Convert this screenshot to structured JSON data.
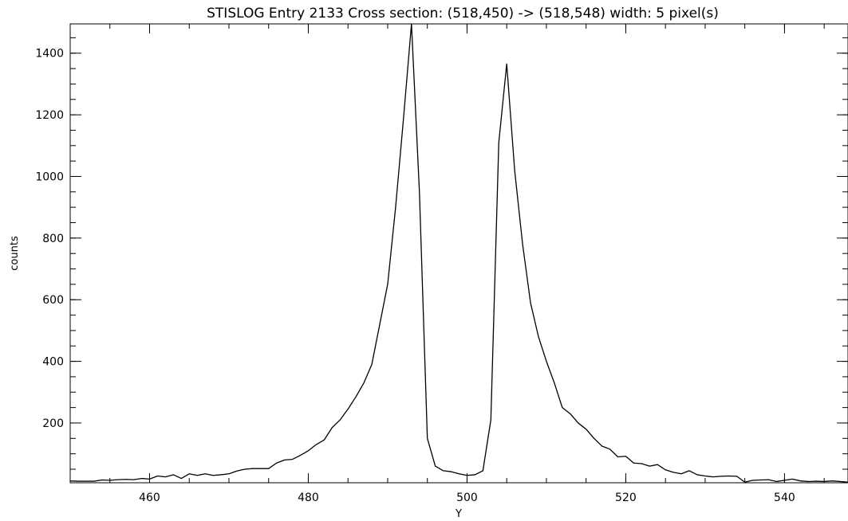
{
  "chart_data": {
    "type": "line",
    "title": "STISLOG Entry 2133 Cross section: (518,450) -> (518,548) width: 5 pixel(s)",
    "xlabel": "Y",
    "ylabel": "counts",
    "xlim": [
      450,
      548
    ],
    "ylim": [
      6,
      1495
    ],
    "x_ticks": [
      460,
      480,
      500,
      520,
      540
    ],
    "y_ticks": [
      200,
      400,
      600,
      800,
      1000,
      1200,
      1400
    ],
    "x_minor_step": 5,
    "y_minor_step": 50,
    "grid": false,
    "legend": "none",
    "line_color": "#000000",
    "series": [
      {
        "x": [
          450,
          451,
          452,
          453,
          454,
          455,
          456,
          457,
          458,
          459,
          460,
          461,
          462,
          463,
          464,
          465,
          466,
          467,
          468,
          469,
          470,
          471,
          472,
          473,
          474,
          475,
          476,
          477,
          478,
          479,
          480,
          481,
          482,
          483,
          484,
          485,
          486,
          487,
          488,
          489,
          490,
          491,
          492,
          493,
          494,
          495,
          496,
          497,
          498,
          499,
          500,
          501,
          502,
          503,
          504,
          505,
          506,
          507,
          508,
          509,
          510,
          511,
          512,
          513,
          514,
          515,
          516,
          517,
          518,
          519,
          520,
          521,
          522,
          523,
          524,
          525,
          526,
          527,
          528,
          529,
          530,
          531,
          532,
          533,
          534,
          535,
          536,
          537,
          538,
          539,
          540,
          541,
          542,
          543,
          544,
          545,
          546,
          547,
          548
        ],
        "values": [
          12,
          11,
          11,
          11,
          15,
          14,
          16,
          17,
          16,
          20,
          18,
          28,
          25,
          32,
          20,
          35,
          30,
          35,
          30,
          32,
          35,
          44,
          50,
          52,
          52,
          52,
          70,
          80,
          82,
          95,
          110,
          130,
          145,
          185,
          210,
          245,
          285,
          330,
          390,
          520,
          650,
          900,
          1190,
          1495,
          950,
          150,
          60,
          45,
          42,
          35,
          30,
          32,
          45,
          210,
          1110,
          1365,
          1020,
          780,
          590,
          480,
          400,
          330,
          250,
          230,
          200,
          180,
          150,
          125,
          115,
          90,
          92,
          70,
          68,
          60,
          65,
          48,
          40,
          35,
          45,
          32,
          28,
          25,
          27,
          28,
          27,
          8,
          14,
          15,
          16,
          10,
          14,
          18,
          12,
          10,
          11,
          10,
          12,
          10,
          8
        ]
      }
    ]
  }
}
